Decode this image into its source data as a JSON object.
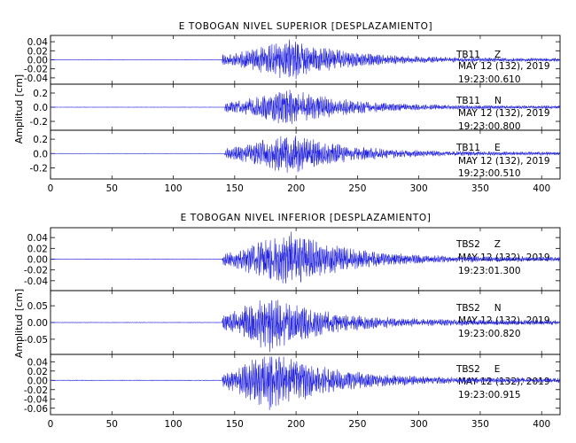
{
  "chart_data": [
    {
      "type": "line",
      "title": "E TOBOGAN NIVEL SUPERIOR [DESPLAZAMIENTO]",
      "ylabel": "Amplitud [cm]",
      "xlabel": "",
      "xlim": [
        0,
        415
      ],
      "xticks": [
        "0",
        "50",
        "100",
        "150",
        "200",
        "250",
        "300",
        "350",
        "400"
      ],
      "xtick_values": [
        0,
        50,
        100,
        150,
        200,
        250,
        300,
        350,
        400
      ],
      "line_color": "#2222dd",
      "panels": [
        {
          "station": "TB11",
          "component": "Z",
          "date": "MAY 12 (132), 2019",
          "time": "19:23:00.610",
          "ylim": [
            -0.05,
            0.05
          ],
          "ytick_values": [
            -0.04,
            -0.02,
            0.0,
            0.02,
            0.04
          ],
          "yticks": [
            "-0.04",
            "-0.02",
            "0.00",
            "0.02",
            "0.04"
          ],
          "onset_s": 140,
          "peak_s": 195,
          "peak_amplitude": 0.045,
          "seed": 11
        },
        {
          "station": "TB11",
          "component": "N",
          "date": "MAY 12 (132), 2019",
          "time": "19:23:00.800",
          "ylim": [
            -0.3,
            0.3
          ],
          "ytick_values": [
            -0.2,
            0.0,
            0.2
          ],
          "yticks": [
            "-0.2",
            "0.0",
            "0.2"
          ],
          "onset_s": 142,
          "peak_s": 195,
          "peak_amplitude": 0.25,
          "seed": 23
        },
        {
          "station": "TB11",
          "component": "E",
          "date": "MAY 12 (132), 2019",
          "time": "19:23:00.510",
          "ylim": [
            -0.33,
            0.3
          ],
          "ytick_values": [
            -0.2,
            0.0,
            0.2
          ],
          "yticks": [
            "-0.2",
            "0.0",
            "0.2"
          ],
          "onset_s": 142,
          "peak_s": 195,
          "peak_amplitude": 0.28,
          "seed": 37
        }
      ]
    },
    {
      "type": "line",
      "title": "E TOBOGAN NIVEL INFERIOR [DESPLAZAMIENTO]",
      "ylabel": "Amplitud [cm]",
      "xlabel": "",
      "xlim": [
        0,
        415
      ],
      "xticks": [
        "0",
        "50",
        "100",
        "150",
        "200",
        "250",
        "300",
        "350",
        "400"
      ],
      "xtick_values": [
        0,
        50,
        100,
        150,
        200,
        250,
        300,
        350,
        400
      ],
      "line_color": "#2222dd",
      "panels": [
        {
          "station": "TBS2",
          "component": "Z",
          "date": "MAY 12 (132), 2019",
          "time": "19:23:01.300",
          "ylim": [
            -0.055,
            0.055
          ],
          "ytick_values": [
            -0.04,
            -0.02,
            0.0,
            0.02,
            0.04
          ],
          "yticks": [
            "-0.04",
            "-0.02",
            "0.00",
            "0.02",
            "0.04"
          ],
          "onset_s": 140,
          "peak_s": 195,
          "peak_amplitude": 0.05,
          "seed": 41
        },
        {
          "station": "TBS2",
          "component": "N",
          "date": "MAY 12 (132), 2019",
          "time": "19:23:00.820",
          "ylim": [
            -0.09,
            0.09
          ],
          "ytick_values": [
            -0.05,
            0.0,
            0.05
          ],
          "yticks": [
            "-0.05",
            "0.00",
            "0.05"
          ],
          "onset_s": 140,
          "peak_s": 178,
          "peak_amplitude": 0.085,
          "seed": 53
        },
        {
          "station": "TBS2",
          "component": "E",
          "date": "MAY 12 (132), 2019",
          "time": "19:23:00.915",
          "ylim": [
            -0.07,
            0.052
          ],
          "ytick_values": [
            -0.06,
            -0.04,
            -0.02,
            0.0,
            0.02,
            0.04
          ],
          "yticks": [
            "-0.06",
            "-0.04",
            "-0.02",
            "0.00",
            "0.02",
            "0.04"
          ],
          "onset_s": 140,
          "peak_s": 180,
          "peak_amplitude": 0.065,
          "seed": 67
        }
      ]
    }
  ]
}
